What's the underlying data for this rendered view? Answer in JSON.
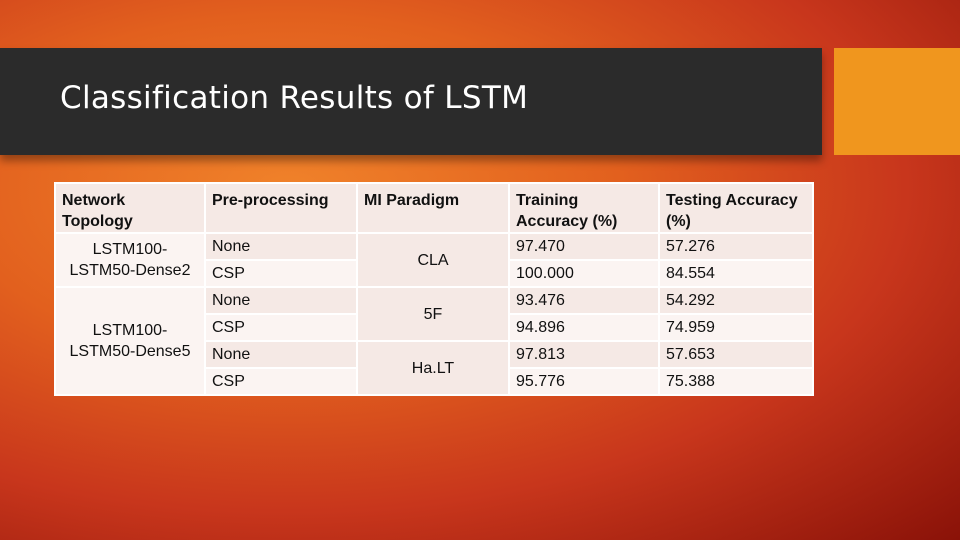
{
  "slide": {
    "title": "Classification Results of LSTM"
  },
  "table": {
    "headers": [
      "Network Topology",
      "Pre-processing",
      "MI Paradigm",
      "Training Accuracy (%)",
      "Testing Accuracy (%)"
    ],
    "groups": [
      {
        "topology": "LSTM100-\nLSTM50-Dense2"
      },
      {
        "topology": "LSTM100-\nLSTM50-Dense5"
      }
    ],
    "paradigms": [
      "CLA",
      "5F",
      "Ha.LT"
    ],
    "rows": [
      {
        "preprocessing": "None",
        "training": "97.470",
        "testing": "57.276"
      },
      {
        "preprocessing": "CSP",
        "training": "100.000",
        "testing": "84.554"
      },
      {
        "preprocessing": "None",
        "training": "93.476",
        "testing": "54.292"
      },
      {
        "preprocessing": "CSP",
        "training": "94.896",
        "testing": "74.959"
      },
      {
        "preprocessing": "None",
        "training": "97.813",
        "testing": "57.653"
      },
      {
        "preprocessing": "CSP",
        "training": "95.776",
        "testing": "75.388"
      }
    ]
  },
  "colors": {
    "title_bar": "#2b2b2b",
    "accent": "#f0961e",
    "cell_dark": "#f5e9e5",
    "cell_light": "#fbf4f2"
  }
}
